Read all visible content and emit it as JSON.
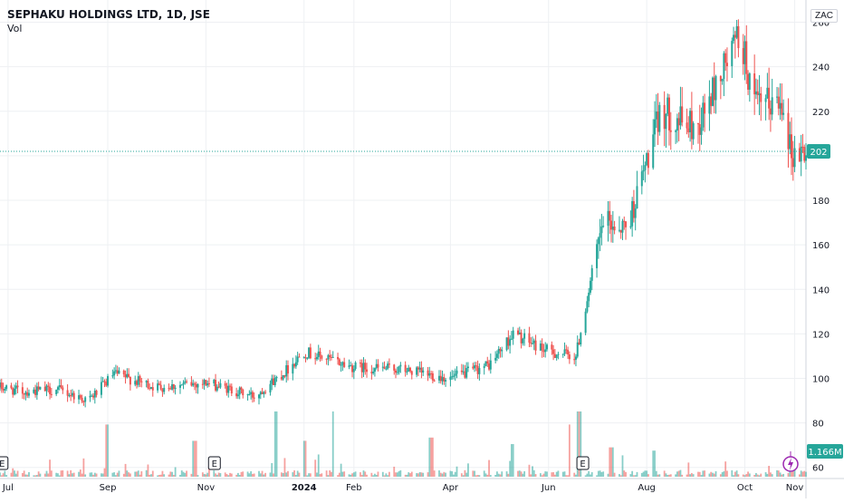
{
  "header": {
    "title": "SEPHAKU HOLDINGS LTD, 1D, JSE",
    "indicator": "Vol",
    "currency": "ZAC"
  },
  "colors": {
    "up": "#26a69a",
    "down": "#ef5350",
    "grid": "#eef0f3",
    "axis": "#d1d4dc"
  },
  "price_tag": {
    "label": "202",
    "value": 202
  },
  "volume_tag": {
    "label": "1.166M"
  },
  "earnings_label": "E",
  "chart_data": {
    "type": "candlestick",
    "ylim": [
      55,
      270
    ],
    "y_ticks": [
      60,
      80,
      100,
      120,
      140,
      160,
      180,
      200,
      220,
      240,
      260
    ],
    "y_tick_labels": [
      "60",
      "80",
      "100",
      "120",
      "140",
      "160",
      "180",
      "200",
      "220",
      "240",
      "260"
    ],
    "x_range": [
      "2023-06-26",
      "2024-11-08"
    ],
    "x_ticks": [
      {
        "date": "2023-07-01",
        "label": "Jul"
      },
      {
        "date": "2023-09-01",
        "label": "Sep"
      },
      {
        "date": "2023-11-01",
        "label": "Nov"
      },
      {
        "date": "2024-01-01",
        "label": "2024"
      },
      {
        "date": "2024-02-01",
        "label": "Feb"
      },
      {
        "date": "2024-04-01",
        "label": "Apr"
      },
      {
        "date": "2024-06-01",
        "label": "Jun"
      },
      {
        "date": "2024-08-01",
        "label": "Aug"
      },
      {
        "date": "2024-10-01",
        "label": "Oct"
      },
      {
        "date": "2024-11-01",
        "label": "Nov"
      }
    ],
    "price_anchors": [
      {
        "date": "2023-06-26",
        "close": 96
      },
      {
        "date": "2023-07-10",
        "close": 94
      },
      {
        "date": "2023-08-01",
        "close": 95
      },
      {
        "date": "2023-08-20",
        "close": 90
      },
      {
        "date": "2023-09-05",
        "close": 102
      },
      {
        "date": "2023-10-01",
        "close": 96
      },
      {
        "date": "2023-11-01",
        "close": 98
      },
      {
        "date": "2023-12-01",
        "close": 92
      },
      {
        "date": "2023-12-20",
        "close": 103
      },
      {
        "date": "2024-01-01",
        "close": 112
      },
      {
        "date": "2024-02-01",
        "close": 105
      },
      {
        "date": "2024-03-01",
        "close": 104
      },
      {
        "date": "2024-04-01",
        "close": 100
      },
      {
        "date": "2024-04-25",
        "close": 106
      },
      {
        "date": "2024-05-10",
        "close": 120
      },
      {
        "date": "2024-06-01",
        "close": 112
      },
      {
        "date": "2024-06-18",
        "close": 110
      },
      {
        "date": "2024-06-25",
        "close": 136
      },
      {
        "date": "2024-07-05",
        "close": 170
      },
      {
        "date": "2024-07-20",
        "close": 168
      },
      {
        "date": "2024-07-31",
        "close": 195
      },
      {
        "date": "2024-08-10",
        "close": 220
      },
      {
        "date": "2024-09-01",
        "close": 212
      },
      {
        "date": "2024-09-15",
        "close": 235
      },
      {
        "date": "2024-09-28",
        "close": 255
      },
      {
        "date": "2024-10-07",
        "close": 222
      },
      {
        "date": "2024-10-25",
        "close": 225
      },
      {
        "date": "2024-10-30",
        "close": 200
      },
      {
        "date": "2024-11-05",
        "close": 202
      }
    ],
    "volume_spikes": [
      {
        "date": "2023-09-01",
        "value": 0.8
      },
      {
        "date": "2023-10-25",
        "value": 0.55
      },
      {
        "date": "2023-12-15",
        "value": 1.0
      },
      {
        "date": "2024-01-01",
        "value": 0.55
      },
      {
        "date": "2024-01-20",
        "value": 1.0
      },
      {
        "date": "2024-03-20",
        "value": 0.6
      },
      {
        "date": "2024-05-10",
        "value": 0.5
      },
      {
        "date": "2024-06-15",
        "value": 0.8
      },
      {
        "date": "2024-06-20",
        "value": 1.0
      },
      {
        "date": "2024-07-10",
        "value": 0.45
      },
      {
        "date": "2024-08-05",
        "value": 0.4
      }
    ],
    "earnings_dates": [
      "2023-06-27",
      "2023-11-06",
      "2024-06-22"
    ]
  }
}
